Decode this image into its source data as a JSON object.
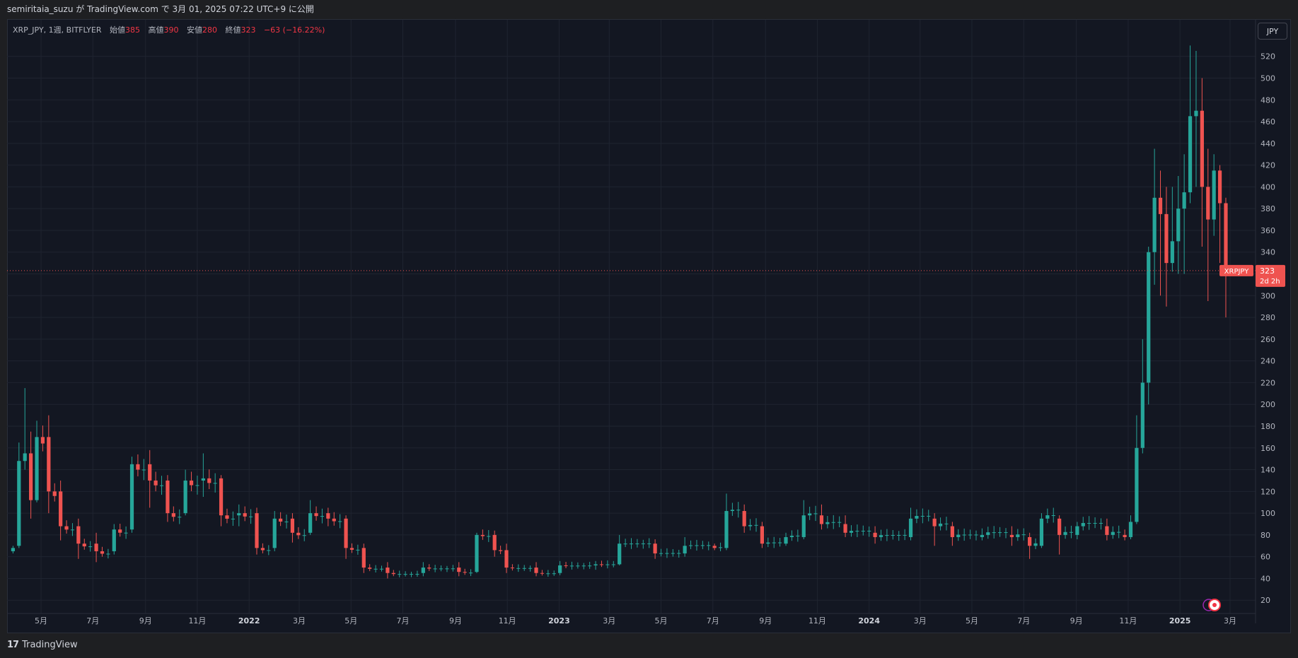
{
  "header": {
    "publish_text": "semiritaia_suzu が TradingView.com で 3月 01, 2025 07:22 UTC+9 に公開"
  },
  "legend": {
    "symbol_text": "XRP_JPY, 1週, BITFLYER",
    "open_label": "始値",
    "open_value": "385",
    "high_label": "高値",
    "high_value": "390",
    "low_label": "安値",
    "low_value": "280",
    "close_label": "終値",
    "close_value": "323",
    "change_text": "−63 (−16.22%)"
  },
  "currency_button": "JPY",
  "price_tag": {
    "symbol": "XRPJPY",
    "price": "323",
    "countdown": "2d 2h"
  },
  "footer": {
    "brand": "TradingView"
  },
  "colors": {
    "up": "#26a69a",
    "down": "#ef5350",
    "background": "#131722",
    "grid": "#1f2430",
    "axis_text": "#b2b5be"
  },
  "chart_data": {
    "type": "candlestick",
    "symbol": "XRP_JPY",
    "interval": "1W",
    "exchange": "BITFLYER",
    "ylim": [
      10,
      540
    ],
    "y_ticks": [
      20,
      40,
      60,
      80,
      100,
      120,
      140,
      160,
      180,
      200,
      220,
      240,
      260,
      280,
      300,
      320,
      340,
      360,
      380,
      400,
      420,
      440,
      460,
      480,
      500,
      520
    ],
    "x_start": "2021-03-22",
    "x_end": "2025-03-31",
    "x_ticks": [
      {
        "label": "5月",
        "date": "2021-05-01"
      },
      {
        "label": "7月",
        "date": "2021-07-01"
      },
      {
        "label": "9月",
        "date": "2021-09-01"
      },
      {
        "label": "11月",
        "date": "2021-11-01"
      },
      {
        "label": "2022",
        "date": "2022-01-01"
      },
      {
        "label": "3月",
        "date": "2022-03-01"
      },
      {
        "label": "5月",
        "date": "2022-05-01"
      },
      {
        "label": "7月",
        "date": "2022-07-01"
      },
      {
        "label": "9月",
        "date": "2022-09-01"
      },
      {
        "label": "11月",
        "date": "2022-11-01"
      },
      {
        "label": "2023",
        "date": "2023-01-01"
      },
      {
        "label": "3月",
        "date": "2023-03-01"
      },
      {
        "label": "5月",
        "date": "2023-05-01"
      },
      {
        "label": "7月",
        "date": "2023-07-01"
      },
      {
        "label": "9月",
        "date": "2023-09-01"
      },
      {
        "label": "11月",
        "date": "2023-11-01"
      },
      {
        "label": "2024",
        "date": "2024-01-01"
      },
      {
        "label": "3月",
        "date": "2024-03-01"
      },
      {
        "label": "5月",
        "date": "2024-05-01"
      },
      {
        "label": "7月",
        "date": "2024-07-01"
      },
      {
        "label": "9月",
        "date": "2024-09-01"
      },
      {
        "label": "11月",
        "date": "2024-11-01"
      },
      {
        "label": "2025",
        "date": "2025-01-01"
      },
      {
        "label": "3月",
        "date": "2025-03-01"
      }
    ],
    "last_price": 323,
    "keypoints": [
      [
        "2021-03-29",
        65,
        68,
        63,
        70
      ],
      [
        "2021-04-05",
        70,
        148,
        68,
        165
      ],
      [
        "2021-04-12",
        148,
        155,
        140,
        215
      ],
      [
        "2021-04-19",
        155,
        112,
        95,
        175
      ],
      [
        "2021-04-26",
        112,
        170,
        110,
        185
      ],
      [
        "2021-05-10",
        170,
        120,
        100,
        190
      ],
      [
        "2021-05-24",
        120,
        88,
        75,
        130
      ],
      [
        "2021-06-14",
        88,
        72,
        58,
        95
      ],
      [
        "2021-07-05",
        72,
        65,
        55,
        82
      ],
      [
        "2021-07-26",
        65,
        85,
        62,
        90
      ],
      [
        "2021-08-16",
        85,
        145,
        82,
        152
      ],
      [
        "2021-09-06",
        145,
        130,
        105,
        158
      ],
      [
        "2021-09-27",
        130,
        100,
        92,
        135
      ],
      [
        "2021-10-18",
        100,
        130,
        98,
        140
      ],
      [
        "2021-11-08",
        130,
        132,
        115,
        155
      ],
      [
        "2021-11-29",
        132,
        98,
        88,
        135
      ],
      [
        "2021-12-20",
        98,
        100,
        88,
        108
      ],
      [
        "2022-01-10",
        100,
        68,
        62,
        105
      ],
      [
        "2022-01-31",
        68,
        95,
        65,
        102
      ],
      [
        "2022-02-21",
        95,
        82,
        73,
        100
      ],
      [
        "2022-03-14",
        82,
        100,
        80,
        112
      ],
      [
        "2022-04-04",
        100,
        95,
        88,
        105
      ],
      [
        "2022-04-25",
        95,
        68,
        58,
        98
      ],
      [
        "2022-05-16",
        68,
        50,
        45,
        72
      ],
      [
        "2022-06-13",
        50,
        45,
        40,
        55
      ],
      [
        "2022-07-25",
        45,
        50,
        42,
        55
      ],
      [
        "2022-09-05",
        50,
        46,
        42,
        55
      ],
      [
        "2022-09-26",
        46,
        80,
        45,
        82
      ],
      [
        "2022-10-17",
        80,
        66,
        60,
        84
      ],
      [
        "2022-10-31",
        66,
        50,
        45,
        72
      ],
      [
        "2022-12-05",
        50,
        45,
        42,
        55
      ],
      [
        "2023-01-02",
        45,
        52,
        43,
        56
      ],
      [
        "2023-02-13",
        52,
        53,
        48,
        56
      ],
      [
        "2023-03-13",
        53,
        72,
        52,
        80
      ],
      [
        "2023-04-24",
        72,
        63,
        58,
        76
      ],
      [
        "2023-05-29",
        63,
        70,
        60,
        78
      ],
      [
        "2023-07-03",
        70,
        68,
        66,
        72
      ],
      [
        "2023-07-17",
        68,
        102,
        66,
        118
      ],
      [
        "2023-08-07",
        102,
        88,
        82,
        108
      ],
      [
        "2023-08-28",
        88,
        72,
        68,
        92
      ],
      [
        "2023-09-25",
        72,
        78,
        70,
        82
      ],
      [
        "2023-10-16",
        78,
        98,
        76,
        112
      ],
      [
        "2023-11-06",
        98,
        90,
        85,
        108
      ],
      [
        "2023-12-04",
        90,
        82,
        78,
        98
      ],
      [
        "2024-01-08",
        82,
        78,
        72,
        88
      ],
      [
        "2024-02-19",
        78,
        95,
        75,
        105
      ],
      [
        "2024-03-18",
        95,
        88,
        70,
        100
      ],
      [
        "2024-04-08",
        88,
        78,
        70,
        92
      ],
      [
        "2024-05-13",
        78,
        80,
        75,
        86
      ],
      [
        "2024-06-17",
        80,
        78,
        70,
        88
      ],
      [
        "2024-07-08",
        78,
        70,
        58,
        82
      ],
      [
        "2024-07-22",
        70,
        95,
        68,
        100
      ],
      [
        "2024-08-12",
        95,
        80,
        62,
        98
      ],
      [
        "2024-09-02",
        80,
        88,
        76,
        92
      ],
      [
        "2024-10-07",
        88,
        80,
        75,
        95
      ],
      [
        "2024-10-28",
        80,
        78,
        75,
        85
      ],
      [
        "2024-11-04",
        78,
        92,
        76,
        98
      ],
      [
        "2024-11-11",
        92,
        160,
        90,
        190
      ],
      [
        "2024-11-18",
        160,
        220,
        155,
        260
      ],
      [
        "2024-11-25",
        220,
        340,
        200,
        345
      ],
      [
        "2024-12-02",
        340,
        390,
        310,
        435
      ],
      [
        "2024-12-09",
        390,
        375,
        300,
        415
      ],
      [
        "2024-12-16",
        375,
        330,
        290,
        400
      ],
      [
        "2024-12-23",
        330,
        350,
        322,
        400
      ],
      [
        "2024-12-30",
        350,
        380,
        320,
        410
      ],
      [
        "2025-01-06",
        380,
        395,
        320,
        430
      ],
      [
        "2025-01-13",
        395,
        465,
        385,
        530
      ],
      [
        "2025-01-20",
        465,
        470,
        400,
        525
      ],
      [
        "2025-01-27",
        470,
        400,
        345,
        500
      ],
      [
        "2025-02-03",
        400,
        370,
        295,
        435
      ],
      [
        "2025-02-10",
        370,
        415,
        355,
        430
      ],
      [
        "2025-02-17",
        415,
        385,
        330,
        420
      ],
      [
        "2025-02-24",
        385,
        323,
        280,
        390
      ]
    ]
  }
}
